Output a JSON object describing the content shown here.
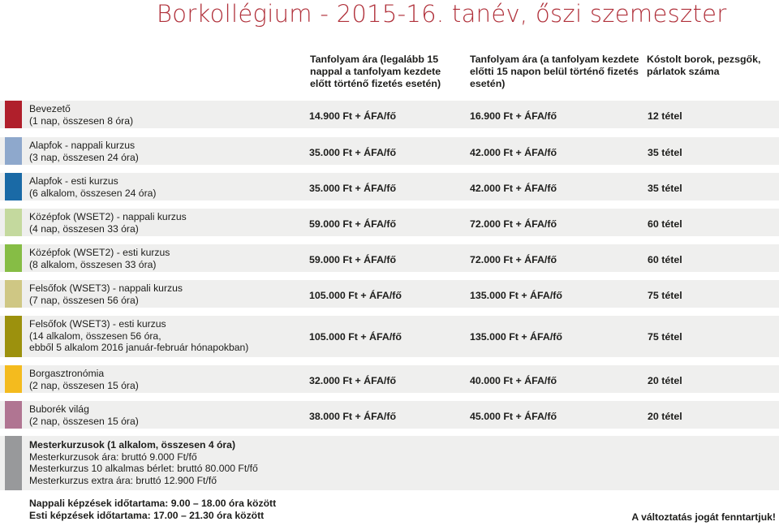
{
  "title": "Borkollégium - 2015-16. tanév, őszi szemeszter",
  "headers": {
    "early_price": "Tanfolyam ára (legalább 15 nappal a tanfolyam kezdete előtt történő fizetés esetén)",
    "late_price": "Tanfolyam ára (a tanfolyam kezdete előtti 15 napon belül történő fizetés esetén)",
    "tasted": "Kóstolt borok, pezsgők, párlatok száma"
  },
  "courses": [
    {
      "color": "#b01f2b",
      "lines": [
        "Bevezető",
        "(1 nap, összesen 8 óra)"
      ],
      "early": "14.900 Ft + ÁFA/fő",
      "late": "16.900 Ft + ÁFA/fő",
      "tasted": "12 tétel"
    },
    {
      "color": "#8ea8cc",
      "lines": [
        "Alapfok - nappali kurzus",
        "(3 nap, összesen 24 óra)"
      ],
      "early": "35.000 Ft + ÁFA/fő",
      "late": "42.000 Ft + ÁFA/fő",
      "tasted": "35 tétel"
    },
    {
      "color": "#1a6aa6",
      "lines": [
        "Alapfok - esti kurzus",
        "(6 alkalom, összesen 24 óra)"
      ],
      "early": "35.000 Ft + ÁFA/fő",
      "late": "42.000 Ft + ÁFA/fő",
      "tasted": "35 tétel"
    },
    {
      "color": "#c4d99e",
      "lines": [
        "Középfok (WSET2) - nappali kurzus",
        "(4 nap, összesen 33 óra)"
      ],
      "early": "59.000 Ft + ÁFA/fő",
      "late": "72.000 Ft + ÁFA/fő",
      "tasted": "60 tétel"
    },
    {
      "color": "#86bd45",
      "lines": [
        "Középfok (WSET2) - esti kurzus",
        "(8 alkalom, összesen 33 óra)"
      ],
      "early": "59.000 Ft + ÁFA/fő",
      "late": "72.000 Ft + ÁFA/fő",
      "tasted": "60 tétel"
    },
    {
      "color": "#cfc784",
      "lines": [
        "Felsőfok (WSET3) - nappali kurzus",
        "(7 nap, összesen 56 óra)"
      ],
      "early": "105.000 Ft + ÁFA/fő",
      "late": "135.000 Ft + ÁFA/fő",
      "tasted": "75 tétel"
    },
    {
      "color": "#9c910d",
      "lines": [
        "Felsőfok (WSET3) - esti kurzus",
        "(14 alkalom, összesen 56 óra,",
        "ebből 5 alkalom 2016 január-február hónapokban)"
      ],
      "early": "105.000 Ft + ÁFA/fő",
      "late": "135.000 Ft + ÁFA/fő",
      "tasted": "75 tétel"
    },
    {
      "color": "#f4bb1e",
      "lines": [
        "Borgasztronómia",
        "(2 nap, összesen 15 óra)"
      ],
      "early": "32.000 Ft + ÁFA/fő",
      "late": "40.000 Ft + ÁFA/fő",
      "tasted": "20 tétel"
    },
    {
      "color": "#b07592",
      "lines": [
        "Buborék világ",
        "(2 nap, összesen 15 óra)"
      ],
      "early": "38.000 Ft + ÁFA/fő",
      "late": "45.000 Ft + ÁFA/fő",
      "tasted": "20 tétel"
    }
  ],
  "master": {
    "color": "#98999b",
    "title": "Mesterkurzusok (1 alkalom, összesen 4 óra)",
    "lines": [
      "Mesterkurzusok ára: bruttó 9.000 Ft/fő",
      "Mesterkurzus 10 alkalmas bérlet: bruttó 80.000 Ft/fő",
      "Mesterkurzus extra ára: bruttó 12.900 Ft/fő"
    ]
  },
  "footer": {
    "day": "Nappali képzések időtartama: 9.00 – 18.00 óra között",
    "evening": "Esti képzések időtartama: 17.00 – 21.30 óra között",
    "reserve": "A változtatás jogát fenntartjuk!"
  }
}
